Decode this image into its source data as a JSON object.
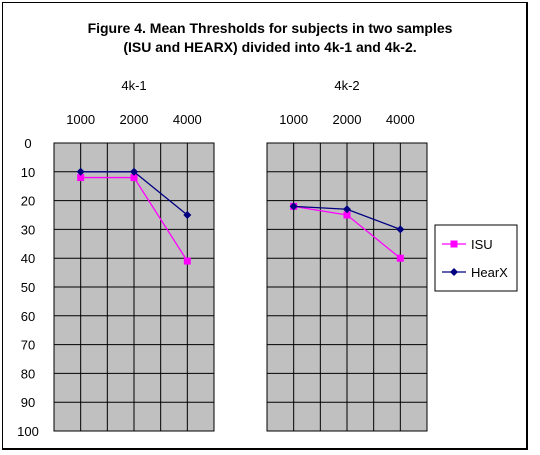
{
  "chart_data": {
    "type": "line",
    "title": [
      "Figure 4.  Mean Thresholds for subjects in two samples",
      "(ISU and HEARX) divided into 4k-1 and 4k-2."
    ],
    "y_ticks": [
      "0",
      "10",
      "20",
      "30",
      "40",
      "50",
      "60",
      "70",
      "80",
      "90",
      "100"
    ],
    "ylim": [
      0,
      100
    ],
    "y_inverted": true,
    "grid": true,
    "plot_background": "#c0c0c0",
    "legend_position": "right",
    "panels": [
      {
        "label": "4k-1",
        "x_ticks": [
          "1000",
          "2000",
          "4000"
        ],
        "series": [
          {
            "name": "ISU",
            "color": "#ff00ff",
            "marker": "square",
            "values": [
              12,
              12,
              41
            ]
          },
          {
            "name": "HearX",
            "color": "#000080",
            "marker": "diamond",
            "values": [
              10,
              10,
              25
            ]
          }
        ]
      },
      {
        "label": "4k-2",
        "x_ticks": [
          "1000",
          "2000",
          "4000"
        ],
        "series": [
          {
            "name": "ISU",
            "color": "#ff00ff",
            "marker": "square",
            "values": [
              22,
              25,
              40
            ]
          },
          {
            "name": "HearX",
            "color": "#000080",
            "marker": "diamond",
            "values": [
              22,
              23,
              30
            ]
          }
        ]
      }
    ],
    "legend": [
      {
        "name": "ISU",
        "color": "#ff00ff",
        "marker": "square"
      },
      {
        "name": "HearX",
        "color": "#000080",
        "marker": "diamond"
      }
    ]
  }
}
